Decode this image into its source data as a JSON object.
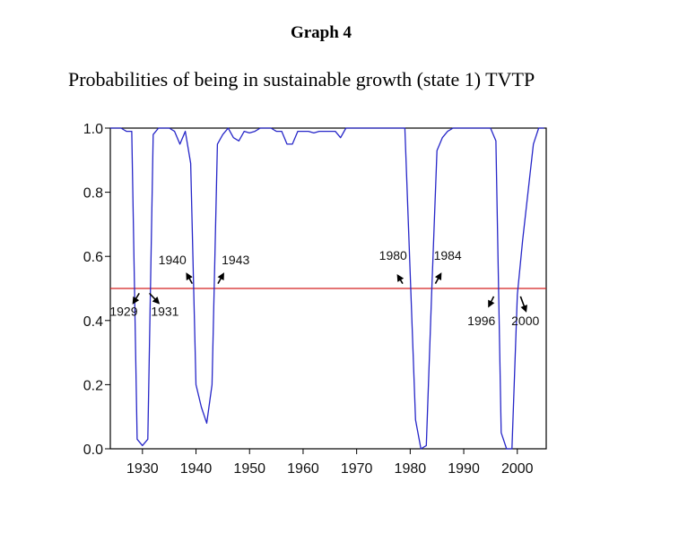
{
  "header": {
    "graph_label": "Graph 4",
    "title": "Probabilities of being in sustainable growth (state 1) TVTP"
  },
  "colors": {
    "series": "#2626c8",
    "threshold": "#d42020",
    "axis": "#000000"
  },
  "chart_data": {
    "type": "line",
    "title": "Probabilities of being in sustainable growth (state 1) TVTP",
    "xlabel": "",
    "ylabel": "",
    "xlim": [
      1924,
      2005.4
    ],
    "ylim": [
      0.0,
      1.0
    ],
    "x_ticks": [
      1930,
      1940,
      1950,
      1960,
      1970,
      1980,
      1990,
      2000
    ],
    "x_tick_labels": [
      "1930",
      "1940",
      "1950",
      "1960",
      "1970",
      "1980",
      "1990",
      "2000"
    ],
    "y_ticks": [
      0.0,
      0.2,
      0.4,
      0.6,
      0.8,
      1.0
    ],
    "y_tick_labels": [
      "0.0",
      "0.2",
      "0.4",
      "0.6",
      "0.8",
      "1.0"
    ],
    "grid": false,
    "legend": "none",
    "threshold": 0.5,
    "series": [
      {
        "name": "P(state 1)",
        "x": [
          1924,
          1925,
          1926,
          1927,
          1928,
          1929,
          1930,
          1931,
          1932,
          1933,
          1934,
          1935,
          1936,
          1937,
          1938,
          1939,
          1940,
          1941,
          1942,
          1943,
          1944,
          1945,
          1946,
          1947,
          1948,
          1949,
          1950,
          1951,
          1952,
          1953,
          1954,
          1955,
          1956,
          1957,
          1958,
          1959,
          1960,
          1961,
          1962,
          1963,
          1964,
          1965,
          1966,
          1967,
          1968,
          1969,
          1970,
          1971,
          1972,
          1973,
          1974,
          1975,
          1976,
          1977,
          1978,
          1979,
          1980,
          1981,
          1982,
          1983,
          1984,
          1985,
          1986,
          1987,
          1988,
          1989,
          1990,
          1991,
          1992,
          1993,
          1994,
          1995,
          1996,
          1997,
          1998,
          1999,
          2000,
          2001,
          2002,
          2003,
          2004,
          2005
        ],
        "values": [
          1.0,
          1.0,
          1.0,
          0.99,
          0.99,
          0.03,
          0.01,
          0.03,
          0.98,
          1.0,
          1.0,
          1.0,
          0.99,
          0.95,
          0.99,
          0.89,
          0.2,
          0.13,
          0.08,
          0.2,
          0.95,
          0.98,
          1.0,
          0.97,
          0.96,
          0.99,
          0.985,
          0.99,
          1.0,
          1.0,
          1.0,
          0.99,
          0.99,
          0.95,
          0.95,
          0.99,
          0.99,
          0.99,
          0.985,
          0.99,
          0.99,
          0.99,
          0.99,
          0.97,
          1.0,
          1.0,
          1.0,
          1.0,
          1.0,
          1.0,
          1.0,
          1.0,
          1.0,
          1.0,
          1.0,
          1.0,
          0.55,
          0.09,
          0.0,
          0.01,
          0.48,
          0.93,
          0.97,
          0.99,
          1.0,
          1.0,
          1.0,
          1.0,
          1.0,
          1.0,
          1.0,
          1.0,
          0.96,
          0.05,
          0.0,
          0.0,
          0.48,
          0.65,
          0.8,
          0.95,
          1.0,
          1.0
        ]
      }
    ],
    "annotations": [
      {
        "label": "1929",
        "year": 1929,
        "text_pos": [
          1926.5,
          0.415
        ],
        "arrow_from": [
          1929.4,
          0.485
        ],
        "arrow_to": [
          1928.3,
          0.455
        ]
      },
      {
        "label": "1931",
        "year": 1931,
        "text_pos": [
          1934.2,
          0.415
        ],
        "arrow_from": [
          1931.3,
          0.485
        ],
        "arrow_to": [
          1933.0,
          0.455
        ]
      },
      {
        "label": "1940",
        "year": 1940,
        "text_pos": [
          1935.6,
          0.575
        ],
        "arrow_from": [
          1939.3,
          0.515
        ],
        "arrow_to": [
          1938.3,
          0.545
        ]
      },
      {
        "label": "1943",
        "year": 1943,
        "text_pos": [
          1947.4,
          0.575
        ],
        "arrow_from": [
          1944.1,
          0.515
        ],
        "arrow_to": [
          1945.1,
          0.545
        ]
      },
      {
        "label": "1980",
        "year": 1980,
        "text_pos": [
          1976.8,
          0.59
        ],
        "arrow_from": [
          1978.6,
          0.515
        ],
        "arrow_to": [
          1977.7,
          0.54
        ]
      },
      {
        "label": "1984",
        "year": 1984,
        "text_pos": [
          1987.0,
          0.59
        ],
        "arrow_from": [
          1984.7,
          0.515
        ],
        "arrow_to": [
          1985.7,
          0.545
        ]
      },
      {
        "label": "1996",
        "year": 1996,
        "text_pos": [
          1993.3,
          0.385
        ],
        "arrow_from": [
          1995.6,
          0.475
        ],
        "arrow_to": [
          1994.7,
          0.445
        ]
      },
      {
        "label": "2000",
        "year": 2000,
        "text_pos": [
          2001.5,
          0.385
        ],
        "arrow_from": [
          2000.6,
          0.475
        ],
        "arrow_to": [
          2001.6,
          0.43
        ]
      }
    ]
  }
}
